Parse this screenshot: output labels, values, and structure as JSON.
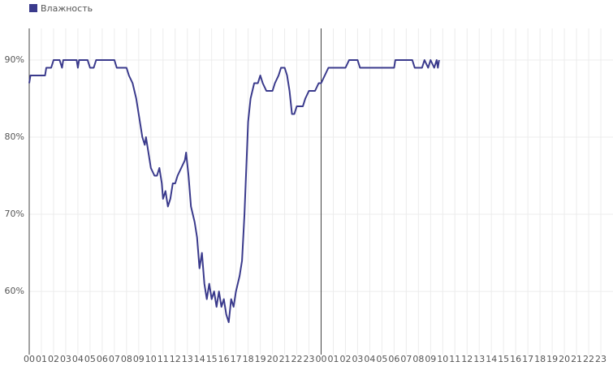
{
  "chart_data": {
    "type": "line",
    "legend": "top-left",
    "grid": true,
    "x": [
      0,
      0.1,
      1,
      1.3,
      1.4,
      1.8,
      2,
      2.5,
      2.7,
      2.8,
      3,
      3.9,
      4,
      4.1,
      4.8,
      5,
      5.3,
      5.5,
      6,
      7,
      7.2,
      8,
      8.2,
      8.5,
      8.8,
      9,
      9.3,
      9.5,
      9.6,
      9.8,
      10,
      10.3,
      10.5,
      10.7,
      10.9,
      11,
      11.2,
      11.4,
      11.6,
      11.8,
      12,
      12.2,
      12.5,
      12.8,
      12.9,
      13.1,
      13.3,
      13.6,
      13.8,
      14,
      14.2,
      14.4,
      14.6,
      14.8,
      15,
      15.2,
      15.4,
      15.6,
      15.8,
      16,
      16.2,
      16.4,
      16.6,
      16.8,
      17,
      17.3,
      17.5,
      17.7,
      17.9,
      18,
      18.2,
      18.5,
      18.8,
      19,
      19.2,
      19.5,
      20,
      20.2,
      20.5,
      20.7,
      21,
      21.2,
      21.4,
      21.6,
      21.8,
      22,
      22.5,
      22.7,
      23,
      23.5,
      23.8,
      24,
      24.3,
      24.6,
      25,
      26,
      26.3,
      27,
      27.2,
      29,
      30,
      30.1,
      31.5,
      31.7,
      32.3,
      32.5,
      32.8,
      33,
      33.3,
      33.5,
      33.6,
      33.7
    ],
    "series": [
      {
        "name": "Влажность",
        "color": "#3a3a8c",
        "values": [
          87,
          88,
          88,
          88,
          89,
          89,
          90,
          90,
          89,
          90,
          90,
          90,
          89,
          90,
          90,
          89,
          89,
          90,
          90,
          90,
          89,
          89,
          88,
          87,
          85,
          83,
          80,
          79,
          80,
          78,
          76,
          75,
          75,
          76,
          74,
          72,
          73,
          71,
          72,
          74,
          74,
          75,
          76,
          77,
          78,
          75,
          71,
          69,
          67,
          63,
          65,
          61,
          59,
          61,
          59,
          60,
          58,
          60,
          58,
          59,
          57,
          56,
          59,
          58,
          60,
          62,
          64,
          70,
          78,
          82,
          85,
          87,
          87,
          88,
          87,
          86,
          86,
          87,
          88,
          89,
          89,
          88,
          86,
          83,
          83,
          84,
          84,
          85,
          86,
          86,
          87,
          87,
          88,
          89,
          89,
          89,
          90,
          90,
          89,
          89,
          89,
          90,
          90,
          89,
          89,
          90,
          89,
          90,
          89,
          90,
          89,
          90
        ]
      }
    ],
    "xlim": [
      0,
      48
    ],
    "xticks": [
      {
        "value": 0,
        "label": "00"
      },
      {
        "value": 1,
        "label": "01"
      },
      {
        "value": 2,
        "label": "02"
      },
      {
        "value": 3,
        "label": "03"
      },
      {
        "value": 4,
        "label": "04"
      },
      {
        "value": 5,
        "label": "05"
      },
      {
        "value": 6,
        "label": "06"
      },
      {
        "value": 7,
        "label": "07"
      },
      {
        "value": 8,
        "label": "08"
      },
      {
        "value": 9,
        "label": "09"
      },
      {
        "value": 10,
        "label": "10"
      },
      {
        "value": 11,
        "label": "11"
      },
      {
        "value": 12,
        "label": "12"
      },
      {
        "value": 13,
        "label": "13"
      },
      {
        "value": 14,
        "label": "14"
      },
      {
        "value": 15,
        "label": "15"
      },
      {
        "value": 16,
        "label": "16"
      },
      {
        "value": 17,
        "label": "17"
      },
      {
        "value": 18,
        "label": "18"
      },
      {
        "value": 19,
        "label": "19"
      },
      {
        "value": 20,
        "label": "20"
      },
      {
        "value": 21,
        "label": "21"
      },
      {
        "value": 22,
        "label": "22"
      },
      {
        "value": 23,
        "label": "23"
      },
      {
        "value": 24,
        "label": "00"
      },
      {
        "value": 25,
        "label": "01"
      },
      {
        "value": 26,
        "label": "02"
      },
      {
        "value": 27,
        "label": "03"
      },
      {
        "value": 28,
        "label": "04"
      },
      {
        "value": 29,
        "label": "05"
      },
      {
        "value": 30,
        "label": "06"
      },
      {
        "value": 31,
        "label": "07"
      },
      {
        "value": 32,
        "label": "08"
      },
      {
        "value": 33,
        "label": "09"
      },
      {
        "value": 34,
        "label": "10"
      },
      {
        "value": 35,
        "label": "11"
      },
      {
        "value": 36,
        "label": "12"
      },
      {
        "value": 37,
        "label": "13"
      },
      {
        "value": 38,
        "label": "14"
      },
      {
        "value": 39,
        "label": "15"
      },
      {
        "value": 40,
        "label": "16"
      },
      {
        "value": 41,
        "label": "17"
      },
      {
        "value": 42,
        "label": "18"
      },
      {
        "value": 43,
        "label": "19"
      },
      {
        "value": 44,
        "label": "20"
      },
      {
        "value": 45,
        "label": "21"
      },
      {
        "value": 46,
        "label": "22"
      },
      {
        "value": 47,
        "label": "23"
      }
    ],
    "ylim": [
      51.8,
      94.1
    ],
    "yticks": [
      {
        "value": 60,
        "label": "60%"
      },
      {
        "value": 70,
        "label": "70%"
      },
      {
        "value": 80,
        "label": "80%"
      },
      {
        "value": 90,
        "label": "90%"
      }
    ]
  }
}
